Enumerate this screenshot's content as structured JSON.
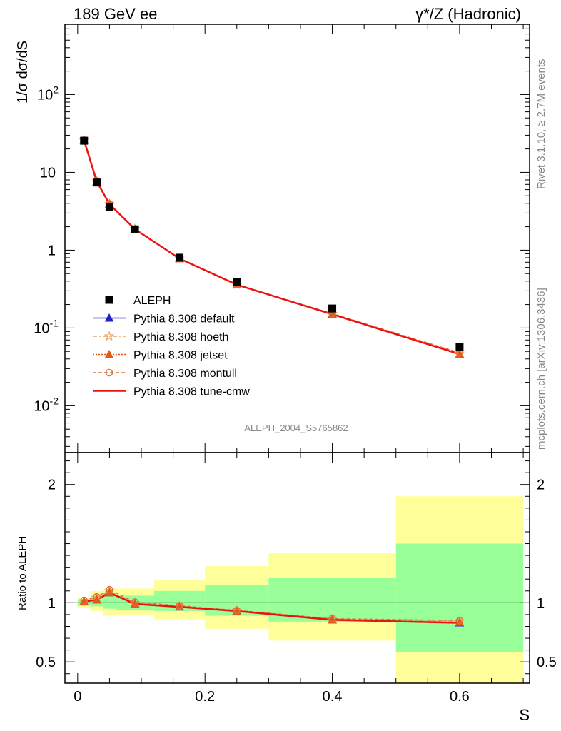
{
  "header": {
    "left_title": "189 GeV ee",
    "right_title": "γ*/Z (Hadronic)"
  },
  "side_text": {
    "rivet": "Rivet 3.1.10, ≥ 2.7M events",
    "mcplots": "mcplots.cern.ch [arXiv:1306.3436]"
  },
  "watermark": "ALEPH_2004_S5765862",
  "colors": {
    "data": "#000000",
    "default": "#1f1fcc",
    "hoeth": "#e8a060",
    "jetset": "#e05a1a",
    "montull": "#e0703a",
    "tune_cmw": "#ee1111",
    "band_green": "#99ff99",
    "band_yellow": "#ffff99"
  },
  "chart_data": [
    {
      "type": "scatter",
      "panel": "main",
      "ylabel": "1/σ  dσ/dS",
      "yscale": "log",
      "ylim": [
        0.0025,
        800
      ],
      "xlim": [
        -0.02,
        0.71
      ],
      "ytick_labels": [
        "10^-2",
        "10^-1",
        "1",
        "10",
        "10^2"
      ],
      "legend_position": "center-left",
      "legend": [
        "ALEPH",
        "Pythia 8.308 default",
        "Pythia 8.308 hoeth",
        "Pythia 8.308 jetset",
        "Pythia 8.308 montull",
        "Pythia 8.308 tune-cmw"
      ],
      "x": [
        0.01,
        0.03,
        0.05,
        0.09,
        0.16,
        0.25,
        0.4,
        0.6
      ],
      "data": {
        "name": "ALEPH",
        "values": [
          25.5,
          7.4,
          3.6,
          1.85,
          0.8,
          0.39,
          0.178,
          0.057
        ],
        "bin_edges": [
          0.0,
          0.02,
          0.04,
          0.06,
          0.12,
          0.2,
          0.3,
          0.5,
          0.7
        ]
      },
      "series": [
        {
          "name": "Pythia 8.308 default",
          "values": [
            25.8,
            7.6,
            3.9,
            1.86,
            0.78,
            0.36,
            0.15,
            0.046
          ]
        },
        {
          "name": "Pythia 8.308 hoeth",
          "values": [
            25.9,
            7.7,
            3.95,
            1.87,
            0.78,
            0.36,
            0.152,
            0.047
          ]
        },
        {
          "name": "Pythia 8.308 jetset",
          "values": [
            25.8,
            7.6,
            3.9,
            1.86,
            0.78,
            0.36,
            0.151,
            0.046
          ]
        },
        {
          "name": "Pythia 8.308 montull",
          "values": [
            26.0,
            7.8,
            3.95,
            1.87,
            0.78,
            0.36,
            0.153,
            0.048
          ]
        },
        {
          "name": "Pythia 8.308 tune-cmw",
          "values": [
            25.8,
            7.6,
            3.9,
            1.86,
            0.78,
            0.36,
            0.15,
            0.046
          ]
        }
      ]
    },
    {
      "type": "line",
      "panel": "ratio",
      "ylabel": "Ratio to ALEPH",
      "xlabel": "S",
      "ylim": [
        0.32,
        2.27
      ],
      "xlim": [
        -0.02,
        0.71
      ],
      "ytick_labels": [
        "0.5",
        "1",
        "2"
      ],
      "xtick_labels": [
        "0",
        "0.2",
        "0.4",
        "0.6"
      ],
      "bands": {
        "bin_edges": [
          0.0,
          0.02,
          0.04,
          0.06,
          0.12,
          0.2,
          0.3,
          0.5,
          0.7
        ],
        "green": [
          [
            0.975,
            1.025
          ],
          [
            0.97,
            1.06
          ],
          [
            0.95,
            1.07
          ],
          [
            0.94,
            1.06
          ],
          [
            0.93,
            1.1
          ],
          [
            0.89,
            1.15
          ],
          [
            0.84,
            1.21
          ],
          [
            0.58,
            1.5
          ]
        ],
        "yellow": [
          [
            0.96,
            1.045
          ],
          [
            0.93,
            1.1
          ],
          [
            0.89,
            1.12
          ],
          [
            0.9,
            1.12
          ],
          [
            0.86,
            1.19
          ],
          [
            0.78,
            1.31
          ],
          [
            0.68,
            1.42
          ],
          [
            0.32,
            1.9
          ]
        ]
      },
      "x": [
        0.01,
        0.03,
        0.05,
        0.09,
        0.16,
        0.25,
        0.4,
        0.6
      ],
      "series": [
        {
          "name": "Pythia 8.308 default",
          "values": [
            1.01,
            1.025,
            1.085,
            0.99,
            0.965,
            0.93,
            0.855,
            0.83
          ]
        },
        {
          "name": "Pythia 8.308 hoeth",
          "values": [
            1.015,
            1.04,
            1.1,
            1.0,
            0.97,
            0.935,
            0.862,
            0.845
          ]
        },
        {
          "name": "Pythia 8.308 jetset",
          "values": [
            1.01,
            1.025,
            1.085,
            0.99,
            0.965,
            0.93,
            0.855,
            0.835
          ]
        },
        {
          "name": "Pythia 8.308 montull",
          "values": [
            1.02,
            1.05,
            1.11,
            1.005,
            0.975,
            0.935,
            0.865,
            0.85
          ]
        },
        {
          "name": "Pythia 8.308 tune-cmw",
          "values": [
            1.01,
            1.025,
            1.085,
            0.99,
            0.965,
            0.93,
            0.855,
            0.83
          ]
        }
      ]
    }
  ]
}
